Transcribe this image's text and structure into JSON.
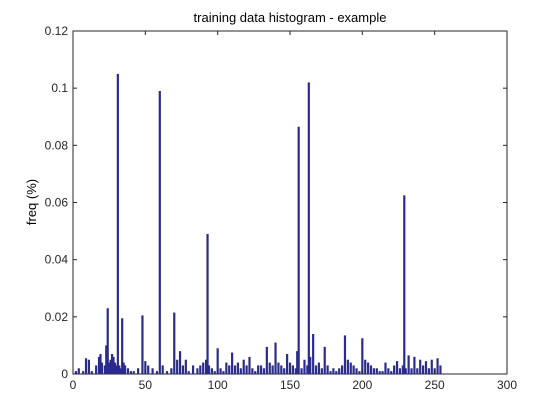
{
  "chart_data": {
    "type": "bar",
    "title": "training data histogram - example",
    "xlabel": "",
    "ylabel": "freq (%)",
    "xlim": [
      0,
      300
    ],
    "ylim": [
      0,
      0.12
    ],
    "xticks": [
      0,
      50,
      100,
      150,
      200,
      250,
      300
    ],
    "xtick_labels": [
      "0",
      "50",
      "100",
      "150",
      "200",
      "250",
      "300"
    ],
    "yticks": [
      0,
      0.02,
      0.04,
      0.06,
      0.08,
      0.1,
      0.12
    ],
    "ytick_labels": [
      "0",
      "0.02",
      "0.04",
      "0.06",
      "0.08",
      "0.1",
      "0.12"
    ],
    "grid": false,
    "bar_color": "#2b2b8c",
    "x": [
      2,
      4,
      7,
      9,
      11,
      13,
      16,
      18,
      19,
      20,
      22,
      23,
      24,
      25,
      26,
      27,
      28,
      29,
      30,
      31,
      32,
      33,
      34,
      35,
      36,
      38,
      40,
      42,
      45,
      48,
      50,
      52,
      55,
      58,
      60,
      62,
      65,
      68,
      70,
      72,
      74,
      76,
      78,
      80,
      83,
      86,
      88,
      90,
      92,
      93,
      94,
      96,
      98,
      100,
      102,
      104,
      106,
      108,
      110,
      112,
      114,
      116,
      118,
      120,
      122,
      124,
      126,
      128,
      130,
      132,
      134,
      136,
      138,
      140,
      142,
      144,
      146,
      148,
      150,
      152,
      154,
      155,
      156,
      158,
      160,
      162,
      163,
      164,
      166,
      168,
      170,
      172,
      174,
      176,
      178,
      180,
      182,
      184,
      186,
      188,
      190,
      192,
      194,
      196,
      198,
      200,
      202,
      204,
      206,
      208,
      210,
      212,
      214,
      216,
      218,
      220,
      222,
      224,
      226,
      228,
      229,
      230,
      232,
      234,
      236,
      238,
      240,
      242,
      244,
      246,
      248,
      250,
      252,
      254
    ],
    "values": [
      0.001,
      0.002,
      0.001,
      0.0055,
      0.005,
      0.001,
      0.003,
      0.006,
      0.007,
      0.004,
      0.003,
      0.01,
      0.023,
      0.004,
      0.005,
      0.007,
      0.006,
      0.004,
      0.003,
      0.105,
      0.003,
      0.002,
      0.0195,
      0.004,
      0.003,
      0.002,
      0.001,
      0.001,
      0.002,
      0.0205,
      0.0045,
      0.003,
      0.002,
      0.001,
      0.099,
      0.003,
      0.001,
      0.002,
      0.0215,
      0.005,
      0.008,
      0.003,
      0.005,
      0.001,
      0.003,
      0.002,
      0.003,
      0.004,
      0.005,
      0.049,
      0.003,
      0.002,
      0.001,
      0.009,
      0.002,
      0.001,
      0.004,
      0.003,
      0.0075,
      0.003,
      0.004,
      0.002,
      0.005,
      0.003,
      0.006,
      0.002,
      0.001,
      0.003,
      0.003,
      0.002,
      0.0095,
      0.004,
      0.003,
      0.011,
      0.004,
      0.003,
      0.002,
      0.007,
      0.004,
      0.003,
      0.002,
      0.008,
      0.0865,
      0.002,
      0.005,
      0.003,
      0.102,
      0.006,
      0.014,
      0.003,
      0.004,
      0.002,
      0.0095,
      0.003,
      0.001,
      0.002,
      0.001,
      0.002,
      0.003,
      0.0135,
      0.005,
      0.004,
      0.003,
      0.002,
      0.001,
      0.0125,
      0.005,
      0.004,
      0.003,
      0.002,
      0.002,
      0.001,
      0.001,
      0.004,
      0.002,
      0.001,
      0.003,
      0.0045,
      0.002,
      0.003,
      0.0625,
      0.002,
      0.0065,
      0.002,
      0.006,
      0.002,
      0.005,
      0.003,
      0.0045,
      0.002,
      0.005,
      0.002,
      0.0055,
      0.003
    ]
  }
}
